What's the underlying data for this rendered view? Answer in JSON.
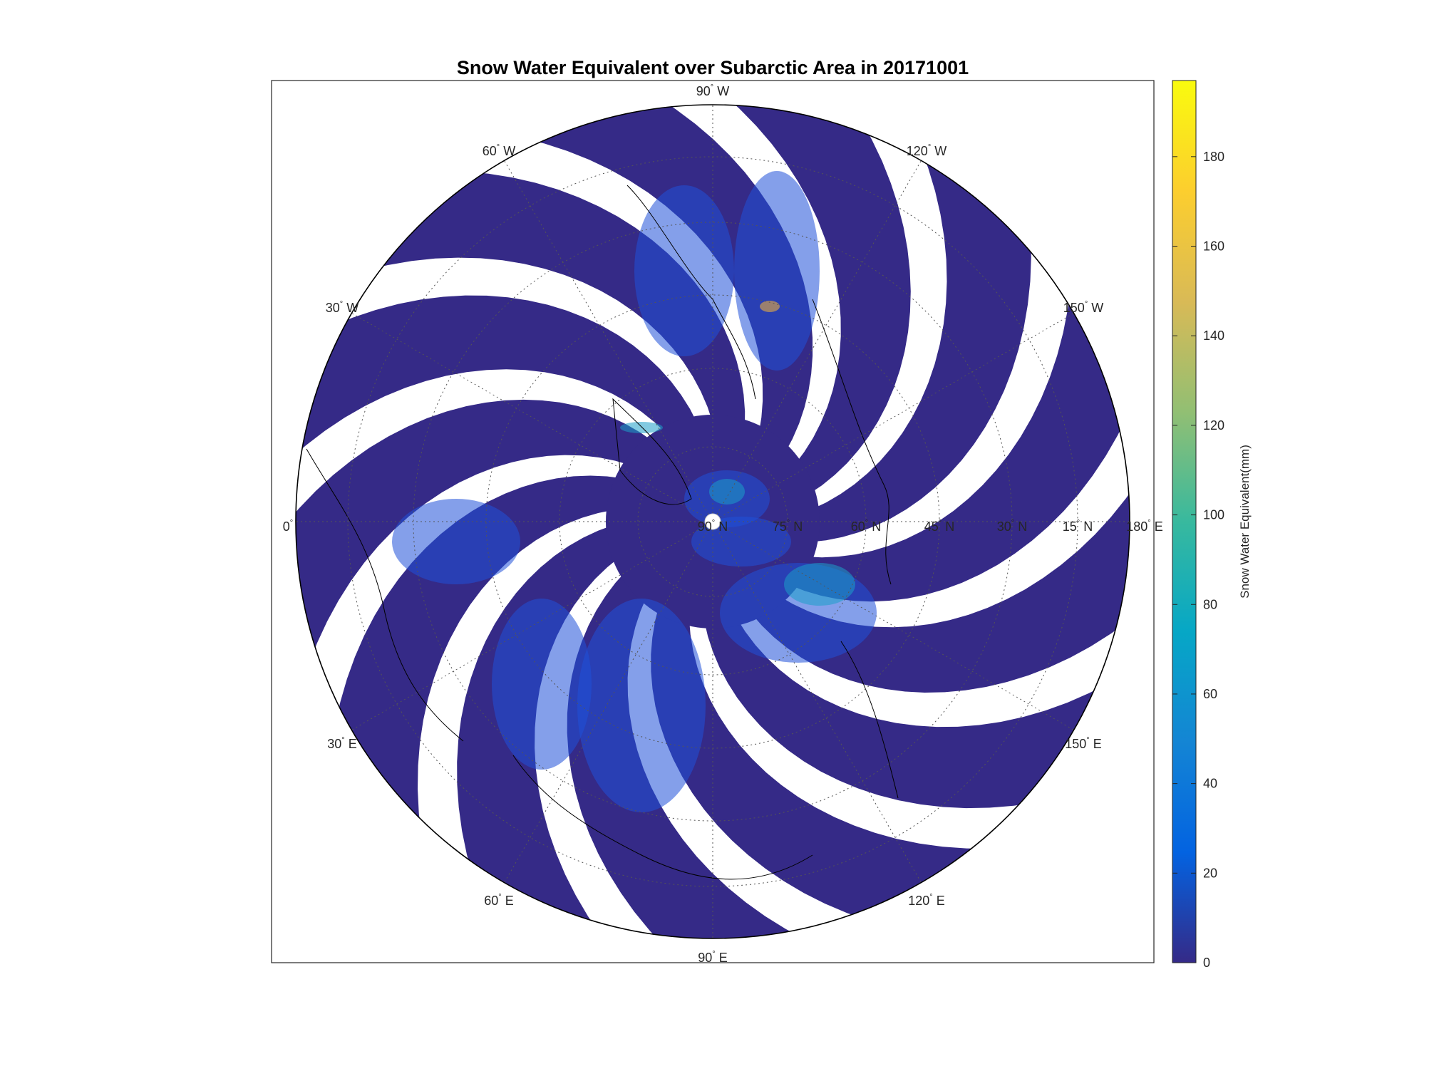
{
  "title": "Snow Water Equivalent over Subarctic Area in 20171001",
  "map": {
    "projection": "polar stereographic (north pole)",
    "longitude_labels": [
      {
        "deg": "90",
        "hem": "W"
      },
      {
        "deg": "120",
        "hem": "W"
      },
      {
        "deg": "60",
        "hem": "W"
      },
      {
        "deg": "150",
        "hem": "W"
      },
      {
        "deg": "30",
        "hem": "W"
      },
      {
        "deg": "0",
        "hem": ""
      },
      {
        "deg": "180",
        "hem": "E"
      },
      {
        "deg": "30",
        "hem": "E"
      },
      {
        "deg": "150",
        "hem": "E"
      },
      {
        "deg": "60",
        "hem": "E"
      },
      {
        "deg": "120",
        "hem": "E"
      },
      {
        "deg": "90",
        "hem": "E"
      }
    ],
    "latitude_labels": [
      {
        "deg": "90",
        "hem": "N"
      },
      {
        "deg": "75",
        "hem": "N"
      },
      {
        "deg": "60",
        "hem": "N"
      },
      {
        "deg": "45",
        "hem": "N"
      },
      {
        "deg": "30",
        "hem": "N"
      },
      {
        "deg": "15",
        "hem": "N"
      }
    ],
    "swath_count": 13,
    "colors": {
      "no_data": "#ffffff",
      "swath_base": "#352a87",
      "snow_low": "#1f50d8",
      "snow_mid": "#1c9fc8",
      "snow_high": "#f9b635"
    }
  },
  "colorbar": {
    "label": "Snow Water Equivalent(mm)",
    "min": 0,
    "max": 197,
    "ticks": [
      "0",
      "20",
      "40",
      "60",
      "80",
      "100",
      "120",
      "140",
      "160",
      "180"
    ],
    "colormap": [
      "#352a87",
      "#0363e1",
      "#1485d4",
      "#06a7c6",
      "#38b99e",
      "#92bf73",
      "#d9ba56",
      "#fcce2e",
      "#f9fb0e"
    ]
  }
}
